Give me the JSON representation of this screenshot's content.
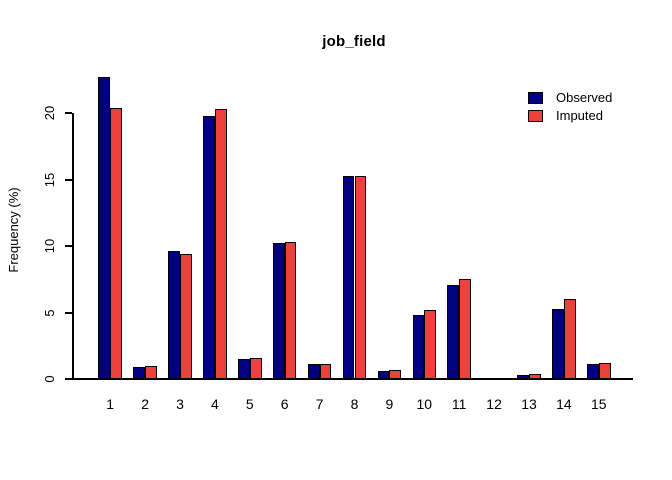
{
  "window": {
    "background": "#ffffff"
  },
  "chart_data": {
    "type": "bar",
    "title": "job_field",
    "xlabel": "",
    "ylabel": "Frequency (%)",
    "categories": [
      "1",
      "2",
      "3",
      "4",
      "5",
      "6",
      "7",
      "8",
      "9",
      "10",
      "11",
      "12",
      "13",
      "14",
      "15"
    ],
    "series": [
      {
        "name": "Observed",
        "color": "#000080",
        "values": [
          22.7,
          0.9,
          9.6,
          19.8,
          1.5,
          10.2,
          1.1,
          15.3,
          0.6,
          4.8,
          7.1,
          0.05,
          0.3,
          5.3,
          1.1
        ]
      },
      {
        "name": "Imputed",
        "color": "#ED413D",
        "values": [
          20.4,
          1.0,
          9.4,
          20.3,
          1.6,
          10.3,
          1.1,
          15.3,
          0.7,
          5.2,
          7.5,
          0.05,
          0.4,
          6.0,
          1.2
        ]
      }
    ],
    "y_ticks": [
      0,
      5,
      10,
      15,
      20
    ],
    "ylim": [
      0,
      23
    ],
    "grid": false,
    "legend_position": "top-right",
    "bar_border_color": "#000000",
    "axis_color": "#000000",
    "text_color": "#000000"
  }
}
